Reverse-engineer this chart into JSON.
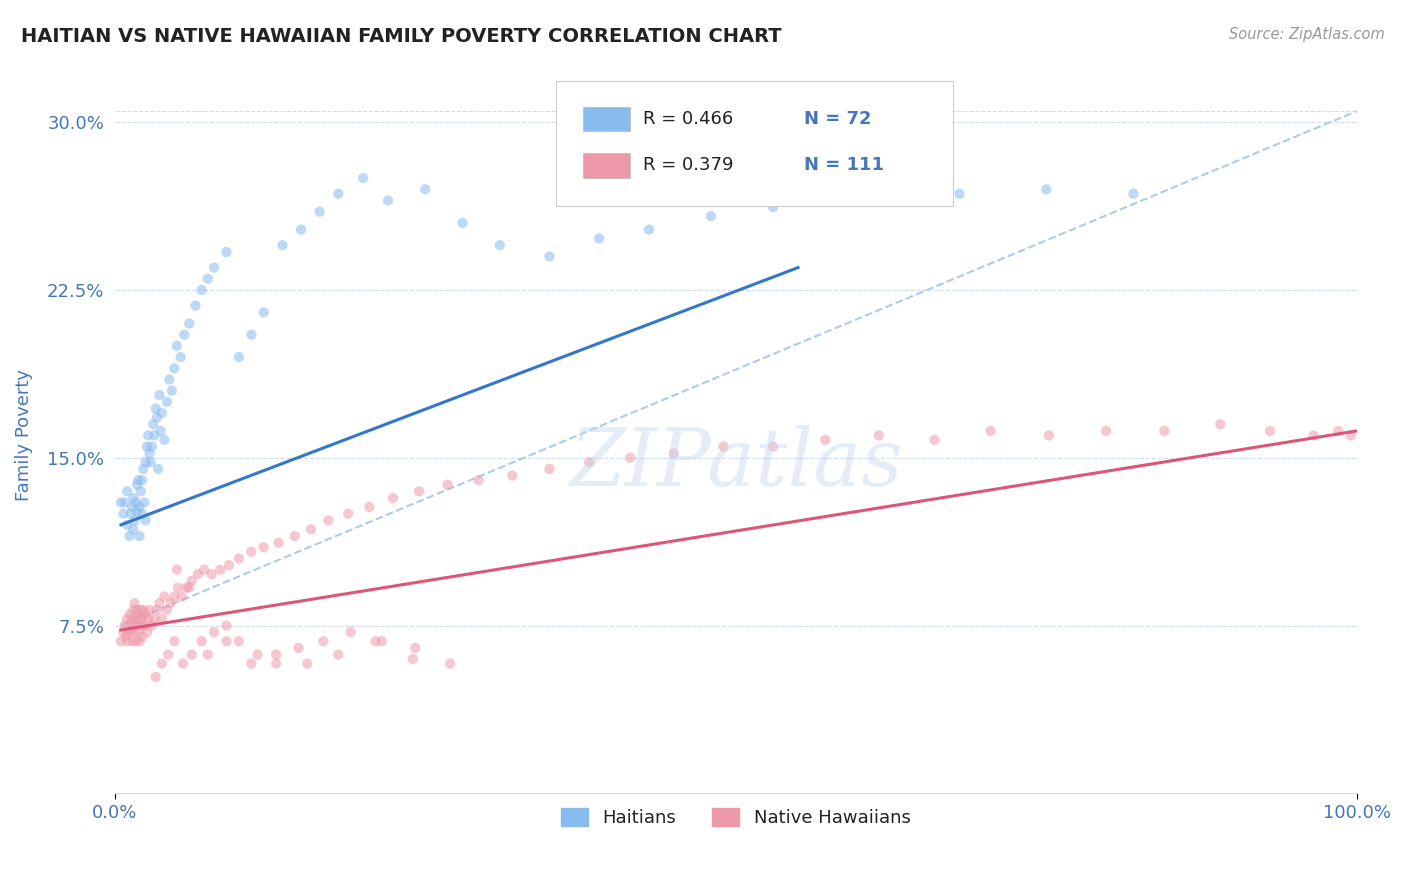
{
  "title": "HAITIAN VS NATIVE HAWAIIAN FAMILY POVERTY CORRELATION CHART",
  "source": "Source: ZipAtlas.com",
  "ylabel": "Family Poverty",
  "xlim": [
    0.0,
    1.0
  ],
  "ylim": [
    0.0,
    0.32
  ],
  "yticks": [
    0.0,
    0.075,
    0.15,
    0.225,
    0.3
  ],
  "ytick_labels": [
    "",
    "7.5%",
    "15.0%",
    "22.5%",
    "30.0%"
  ],
  "xtick_labels": [
    "0.0%",
    "100.0%"
  ],
  "blue_scatter_x": [
    0.005,
    0.007,
    0.008,
    0.01,
    0.01,
    0.012,
    0.013,
    0.014,
    0.015,
    0.015,
    0.016,
    0.017,
    0.018,
    0.018,
    0.019,
    0.02,
    0.02,
    0.021,
    0.022,
    0.022,
    0.023,
    0.024,
    0.025,
    0.025,
    0.026,
    0.027,
    0.028,
    0.029,
    0.03,
    0.031,
    0.032,
    0.033,
    0.034,
    0.035,
    0.036,
    0.037,
    0.038,
    0.04,
    0.042,
    0.044,
    0.046,
    0.048,
    0.05,
    0.053,
    0.056,
    0.06,
    0.065,
    0.07,
    0.075,
    0.08,
    0.09,
    0.1,
    0.11,
    0.12,
    0.135,
    0.15,
    0.165,
    0.18,
    0.2,
    0.22,
    0.25,
    0.28,
    0.31,
    0.35,
    0.39,
    0.43,
    0.48,
    0.53,
    0.6,
    0.68,
    0.75,
    0.82
  ],
  "blue_scatter_y": [
    0.13,
    0.125,
    0.13,
    0.12,
    0.135,
    0.115,
    0.125,
    0.128,
    0.118,
    0.132,
    0.122,
    0.13,
    0.126,
    0.138,
    0.14,
    0.115,
    0.128,
    0.135,
    0.125,
    0.14,
    0.145,
    0.13,
    0.122,
    0.148,
    0.155,
    0.16,
    0.152,
    0.148,
    0.155,
    0.165,
    0.16,
    0.172,
    0.168,
    0.145,
    0.178,
    0.162,
    0.17,
    0.158,
    0.175,
    0.185,
    0.18,
    0.19,
    0.2,
    0.195,
    0.205,
    0.21,
    0.218,
    0.225,
    0.23,
    0.235,
    0.242,
    0.195,
    0.205,
    0.215,
    0.245,
    0.252,
    0.26,
    0.268,
    0.275,
    0.265,
    0.27,
    0.255,
    0.245,
    0.24,
    0.248,
    0.252,
    0.258,
    0.262,
    0.265,
    0.268,
    0.27,
    0.268
  ],
  "pink_scatter_x": [
    0.005,
    0.007,
    0.008,
    0.009,
    0.01,
    0.01,
    0.011,
    0.012,
    0.012,
    0.013,
    0.014,
    0.014,
    0.015,
    0.015,
    0.016,
    0.016,
    0.017,
    0.017,
    0.018,
    0.018,
    0.019,
    0.019,
    0.02,
    0.02,
    0.021,
    0.021,
    0.022,
    0.022,
    0.023,
    0.024,
    0.025,
    0.026,
    0.027,
    0.028,
    0.03,
    0.032,
    0.034,
    0.036,
    0.038,
    0.04,
    0.042,
    0.045,
    0.048,
    0.051,
    0.054,
    0.058,
    0.062,
    0.067,
    0.072,
    0.078,
    0.085,
    0.092,
    0.1,
    0.11,
    0.12,
    0.132,
    0.145,
    0.158,
    0.172,
    0.188,
    0.205,
    0.224,
    0.245,
    0.268,
    0.293,
    0.32,
    0.35,
    0.382,
    0.415,
    0.45,
    0.49,
    0.53,
    0.572,
    0.615,
    0.66,
    0.705,
    0.752,
    0.798,
    0.845,
    0.89,
    0.93,
    0.965,
    0.985,
    0.995,
    0.033,
    0.038,
    0.043,
    0.048,
    0.055,
    0.062,
    0.07,
    0.08,
    0.09,
    0.1,
    0.115,
    0.13,
    0.148,
    0.168,
    0.19,
    0.215,
    0.242,
    0.27,
    0.05,
    0.06,
    0.075,
    0.09,
    0.11,
    0.13,
    0.155,
    0.18,
    0.21,
    0.24
  ],
  "pink_scatter_y": [
    0.068,
    0.072,
    0.075,
    0.07,
    0.068,
    0.078,
    0.072,
    0.075,
    0.08,
    0.073,
    0.068,
    0.078,
    0.072,
    0.082,
    0.075,
    0.085,
    0.078,
    0.068,
    0.082,
    0.075,
    0.072,
    0.08,
    0.068,
    0.078,
    0.075,
    0.082,
    0.07,
    0.078,
    0.082,
    0.075,
    0.08,
    0.072,
    0.078,
    0.082,
    0.075,
    0.078,
    0.082,
    0.085,
    0.078,
    0.088,
    0.082,
    0.085,
    0.088,
    0.092,
    0.088,
    0.092,
    0.095,
    0.098,
    0.1,
    0.098,
    0.1,
    0.102,
    0.105,
    0.108,
    0.11,
    0.112,
    0.115,
    0.118,
    0.122,
    0.125,
    0.128,
    0.132,
    0.135,
    0.138,
    0.14,
    0.142,
    0.145,
    0.148,
    0.15,
    0.152,
    0.155,
    0.155,
    0.158,
    0.16,
    0.158,
    0.162,
    0.16,
    0.162,
    0.162,
    0.165,
    0.162,
    0.16,
    0.162,
    0.16,
    0.052,
    0.058,
    0.062,
    0.068,
    0.058,
    0.062,
    0.068,
    0.072,
    0.075,
    0.068,
    0.062,
    0.058,
    0.065,
    0.068,
    0.072,
    0.068,
    0.065,
    0.058,
    0.1,
    0.092,
    0.062,
    0.068,
    0.058,
    0.062,
    0.058,
    0.062,
    0.068,
    0.06
  ],
  "blue_line_x": [
    0.005,
    0.55
  ],
  "blue_line_y": [
    0.12,
    0.235
  ],
  "pink_line_x": [
    0.005,
    1.0
  ],
  "pink_line_y": [
    0.073,
    0.162
  ],
  "dashed_line_x": [
    0.005,
    1.0
  ],
  "dashed_line_y": [
    0.075,
    0.305
  ],
  "blue_color": "#88bbee",
  "pink_color": "#ee99aa",
  "blue_line_color": "#3377cc",
  "pink_line_color": "#dd5577",
  "dashed_color": "#aaccee",
  "grid_color": "#ccddee",
  "title_color": "#222222",
  "axis_label_color": "#4477bb",
  "source_color": "#999999",
  "watermark": "ZIPatlas",
  "scatter_size": 55,
  "scatter_alpha": 0.55,
  "line_width": 2.2
}
